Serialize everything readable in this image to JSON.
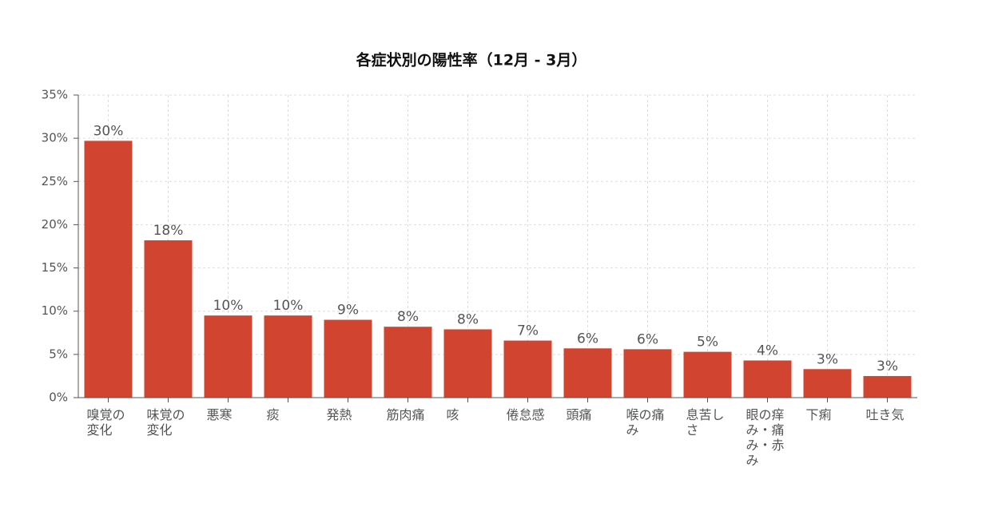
{
  "chart_data": {
    "type": "bar",
    "title": "各症状別の陽性率（12月 - 3月）",
    "categories": [
      "嗅覚の変化",
      "味覚の変化",
      "悪寒",
      "痰",
      "発熱",
      "筋肉痛",
      "咳",
      "倦怠感",
      "頭痛",
      "喉の痛み",
      "息苦しさ",
      "眼の痒み・痛み・赤み",
      "下痢",
      "吐き気"
    ],
    "values": [
      29.7,
      18.2,
      9.5,
      9.5,
      9.0,
      8.2,
      7.9,
      6.6,
      5.7,
      5.6,
      5.3,
      4.3,
      3.3,
      2.5
    ],
    "value_labels": [
      "30%",
      "18%",
      "10%",
      "10%",
      "9%",
      "8%",
      "8%",
      "7%",
      "6%",
      "6%",
      "5%",
      "4%",
      "3%",
      "3%"
    ],
    "color": "#d14430",
    "ylim": [
      0,
      35
    ],
    "yticks": [
      {
        "value": 0,
        "label": "0%"
      },
      {
        "value": 5,
        "label": "5%"
      },
      {
        "value": 10,
        "label": "10%"
      },
      {
        "value": 15,
        "label": "15%"
      },
      {
        "value": 20,
        "label": "20%"
      },
      {
        "value": 25,
        "label": "25%"
      },
      {
        "value": 30,
        "label": "30%"
      },
      {
        "value": 35,
        "label": "35%"
      }
    ],
    "grid": true
  }
}
